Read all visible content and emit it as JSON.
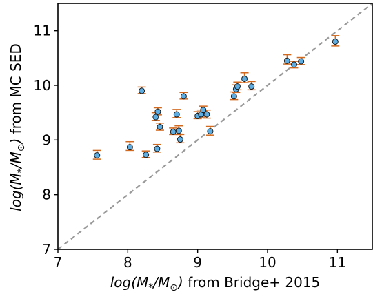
{
  "chart_data": {
    "type": "scatter",
    "xlabel_math": "log(M",
    "xlabel_sub1": "*",
    "xlabel_mid": "/M",
    "xlabel_sub2": "⊙",
    "xlabel_tail": ") from Bridge+ 2015",
    "ylabel_math": "log(M",
    "ylabel_sub1": "*",
    "ylabel_mid": "/M",
    "ylabel_sub2": "⊙",
    "ylabel_tail": ") from MC SED",
    "xlim": [
      7.0,
      11.5
    ],
    "ylim": [
      7.0,
      11.5
    ],
    "xticks": [
      "7",
      "8",
      "9",
      "10",
      "11"
    ],
    "yticks": [
      "7",
      "8",
      "9",
      "10",
      "11"
    ],
    "grid": false,
    "reference_line": {
      "style": "dashed",
      "from": [
        7.0,
        7.0
      ],
      "to": [
        11.5,
        11.5
      ],
      "color": "#999999"
    },
    "marker_color": "#5DADE2",
    "marker_edge": "#1a1a1a",
    "errorbar_color": "#D2691E",
    "points": [
      {
        "x": 7.56,
        "y": 8.72,
        "yerr_lo": 0.07,
        "yerr_hi": 0.09
      },
      {
        "x": 8.03,
        "y": 8.87,
        "yerr_lo": 0.06,
        "yerr_hi": 0.1
      },
      {
        "x": 8.2,
        "y": 9.9,
        "yerr_lo": 0.05,
        "yerr_hi": 0.07
      },
      {
        "x": 8.26,
        "y": 8.73,
        "yerr_lo": 0.05,
        "yerr_hi": 0.07
      },
      {
        "x": 8.4,
        "y": 9.42,
        "yerr_lo": 0.06,
        "yerr_hi": 0.08
      },
      {
        "x": 8.42,
        "y": 8.84,
        "yerr_lo": 0.06,
        "yerr_hi": 0.08
      },
      {
        "x": 8.43,
        "y": 9.52,
        "yerr_lo": 0.06,
        "yerr_hi": 0.07
      },
      {
        "x": 8.46,
        "y": 9.24,
        "yerr_lo": 0.06,
        "yerr_hi": 0.07
      },
      {
        "x": 8.65,
        "y": 9.15,
        "yerr_lo": 0.05,
        "yerr_hi": 0.07
      },
      {
        "x": 8.7,
        "y": 9.47,
        "yerr_lo": 0.06,
        "yerr_hi": 0.09
      },
      {
        "x": 8.73,
        "y": 9.17,
        "yerr_lo": 0.06,
        "yerr_hi": 0.09
      },
      {
        "x": 8.75,
        "y": 9.01,
        "yerr_lo": 0.06,
        "yerr_hi": 0.09
      },
      {
        "x": 8.8,
        "y": 9.8,
        "yerr_lo": 0.05,
        "yerr_hi": 0.07
      },
      {
        "x": 9.0,
        "y": 9.44,
        "yerr_lo": 0.05,
        "yerr_hi": 0.08
      },
      {
        "x": 9.05,
        "y": 9.47,
        "yerr_lo": 0.05,
        "yerr_hi": 0.08
      },
      {
        "x": 9.08,
        "y": 9.55,
        "yerr_lo": 0.06,
        "yerr_hi": 0.07
      },
      {
        "x": 9.13,
        "y": 9.47,
        "yerr_lo": 0.07,
        "yerr_hi": 0.08
      },
      {
        "x": 9.18,
        "y": 9.16,
        "yerr_lo": 0.07,
        "yerr_hi": 0.09
      },
      {
        "x": 9.52,
        "y": 9.8,
        "yerr_lo": 0.06,
        "yerr_hi": 0.08
      },
      {
        "x": 9.55,
        "y": 9.93,
        "yerr_lo": 0.06,
        "yerr_hi": 0.08
      },
      {
        "x": 9.57,
        "y": 9.98,
        "yerr_lo": 0.06,
        "yerr_hi": 0.08
      },
      {
        "x": 9.67,
        "y": 10.12,
        "yerr_lo": 0.07,
        "yerr_hi": 0.11
      },
      {
        "x": 9.77,
        "y": 9.98,
        "yerr_lo": 0.06,
        "yerr_hi": 0.09
      },
      {
        "x": 10.28,
        "y": 10.45,
        "yerr_lo": 0.06,
        "yerr_hi": 0.11
      },
      {
        "x": 10.38,
        "y": 10.38,
        "yerr_lo": 0.06,
        "yerr_hi": 0.06
      },
      {
        "x": 10.48,
        "y": 10.44,
        "yerr_lo": 0.06,
        "yerr_hi": 0.07
      },
      {
        "x": 10.97,
        "y": 10.8,
        "yerr_lo": 0.08,
        "yerr_hi": 0.11
      }
    ]
  }
}
